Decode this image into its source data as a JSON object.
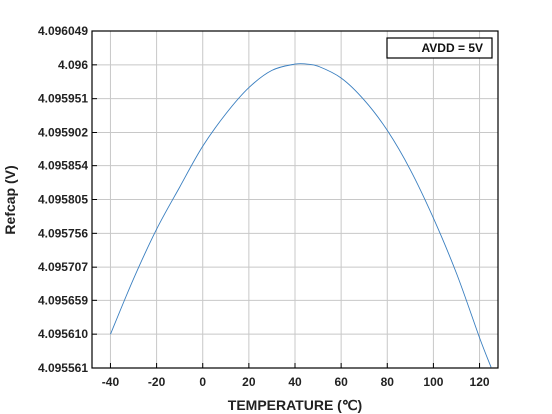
{
  "chart_data": {
    "type": "line",
    "xlabel": "TEMPERATURE (℃)",
    "ylabel": "Refcap (V)",
    "xlim": [
      -48,
      128
    ],
    "ylim": [
      4.095561,
      4.096049
    ],
    "x_ticks": [
      -40,
      -20,
      0,
      20,
      40,
      60,
      80,
      100,
      120
    ],
    "x_tick_labels": [
      "-40",
      "-20",
      "0",
      "20",
      "40",
      "60",
      "80",
      "100",
      "120"
    ],
    "y_ticks": [
      4.095561,
      4.09561,
      4.095659,
      4.095707,
      4.095756,
      4.095805,
      4.095854,
      4.095902,
      4.095951,
      4.096,
      4.096049
    ],
    "y_tick_labels": [
      "4.095561",
      "4.095610",
      "4.095659",
      "4.095707",
      "4.095756",
      "4.095805",
      "4.095854",
      "4.095902",
      "4.095951",
      "4.096",
      "4.096049"
    ],
    "grid": true,
    "legend": {
      "position": "top-right"
    },
    "series": [
      {
        "name": "AVDD = 5V",
        "color": "#3a7fc0",
        "x": [
          -40,
          -30,
          -20,
          -10,
          0,
          10,
          20,
          30,
          40,
          45,
          50,
          60,
          70,
          80,
          90,
          100,
          110,
          120,
          125
        ],
        "y": [
          4.09561,
          4.09569,
          4.095762,
          4.095823,
          4.095882,
          4.095929,
          4.095967,
          4.095992,
          4.096001,
          4.096001,
          4.095998,
          4.095981,
          4.095949,
          4.095905,
          4.095848,
          4.095778,
          4.095698,
          4.095605,
          4.095562
        ]
      }
    ]
  }
}
